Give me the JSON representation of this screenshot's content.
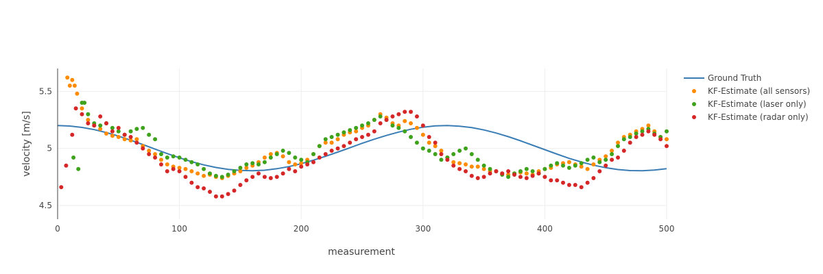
{
  "chart_data": {
    "type": "scatter",
    "title": "",
    "xlabel": "measurement",
    "ylabel": "velocity [m/s]",
    "xlim": [
      0,
      500
    ],
    "ylim": [
      4.38,
      5.7
    ],
    "x_ticks": [
      0,
      100,
      200,
      300,
      400,
      500
    ],
    "x_tick_labels": [
      "0",
      "100",
      "200",
      "300",
      "400",
      "500"
    ],
    "y_ticks": [
      4.5,
      5,
      5.5
    ],
    "y_tick_labels": [
      "4.5",
      "5",
      "5.5"
    ],
    "grid": true,
    "legend_position": "top-right",
    "series": [
      {
        "name": "Ground Truth",
        "mode": "line",
        "color": "#3a7db5",
        "x": [
          0,
          10,
          20,
          30,
          40,
          50,
          60,
          70,
          80,
          90,
          100,
          110,
          120,
          130,
          140,
          150,
          160,
          170,
          180,
          190,
          200,
          210,
          220,
          230,
          240,
          250,
          260,
          270,
          280,
          290,
          300,
          310,
          320,
          330,
          340,
          350,
          360,
          370,
          380,
          390,
          400,
          410,
          420,
          430,
          440,
          450,
          460,
          470,
          480,
          490,
          500
        ],
        "y": [
          5.2,
          5.196,
          5.184,
          5.165,
          5.139,
          5.108,
          5.072,
          5.034,
          4.994,
          4.955,
          4.918,
          4.884,
          4.856,
          4.833,
          4.817,
          4.807,
          4.804,
          4.809,
          4.822,
          4.841,
          4.866,
          4.897,
          4.931,
          4.968,
          5.006,
          5.045,
          5.081,
          5.114,
          5.143,
          5.168,
          5.186,
          5.197,
          5.2,
          5.195,
          5.182,
          5.162,
          5.135,
          5.103,
          5.067,
          5.028,
          4.989,
          4.95,
          4.913,
          4.881,
          4.853,
          4.831,
          4.815,
          4.806,
          4.805,
          4.81,
          4.823
        ]
      },
      {
        "name": "KF-Estimate (all sensors)",
        "mode": "markers",
        "color": "#ff8c00",
        "x": [
          8,
          10,
          12,
          14,
          16,
          20,
          25,
          30,
          35,
          40,
          45,
          50,
          55,
          60,
          65,
          70,
          75,
          80,
          85,
          90,
          95,
          100,
          105,
          110,
          115,
          120,
          125,
          130,
          135,
          140,
          145,
          150,
          155,
          160,
          165,
          170,
          175,
          180,
          185,
          190,
          195,
          200,
          205,
          210,
          215,
          220,
          225,
          230,
          235,
          240,
          245,
          250,
          255,
          260,
          265,
          270,
          275,
          280,
          285,
          290,
          295,
          300,
          305,
          310,
          315,
          320,
          325,
          330,
          335,
          340,
          345,
          350,
          355,
          360,
          365,
          370,
          375,
          380,
          385,
          390,
          395,
          400,
          405,
          410,
          415,
          420,
          425,
          430,
          435,
          440,
          445,
          450,
          455,
          460,
          465,
          470,
          475,
          480,
          485,
          490,
          495,
          500
        ],
        "y": [
          5.62,
          5.55,
          5.6,
          5.55,
          5.48,
          5.35,
          5.25,
          5.2,
          5.17,
          5.13,
          5.11,
          5.1,
          5.08,
          5.07,
          5.08,
          5.02,
          4.98,
          4.95,
          4.9,
          4.86,
          4.84,
          4.83,
          4.82,
          4.8,
          4.78,
          4.76,
          4.77,
          4.75,
          4.74,
          4.76,
          4.78,
          4.8,
          4.83,
          4.85,
          4.88,
          4.92,
          4.95,
          4.96,
          4.93,
          4.88,
          4.86,
          4.87,
          4.9,
          4.95,
          5.02,
          5.05,
          5.05,
          5.08,
          5.12,
          5.14,
          5.15,
          5.18,
          5.2,
          5.25,
          5.3,
          5.27,
          5.22,
          5.2,
          5.24,
          5.22,
          5.18,
          5.12,
          5.05,
          5.02,
          4.98,
          4.92,
          4.88,
          4.87,
          4.86,
          4.84,
          4.84,
          4.82,
          4.8,
          4.8,
          4.78,
          4.77,
          4.78,
          4.79,
          4.78,
          4.77,
          4.8,
          4.82,
          4.83,
          4.86,
          4.87,
          4.88,
          4.86,
          4.84,
          4.82,
          4.86,
          4.9,
          4.93,
          4.98,
          5.05,
          5.1,
          5.12,
          5.15,
          5.17,
          5.2,
          5.15,
          5.1,
          5.08
        ]
      },
      {
        "name": "KF-Estimate (laser only)",
        "mode": "markers",
        "color": "#3ea21c",
        "x": [
          13,
          17,
          20,
          22,
          25,
          30,
          35,
          40,
          45,
          50,
          55,
          60,
          65,
          70,
          75,
          80,
          85,
          90,
          95,
          100,
          105,
          110,
          115,
          120,
          125,
          130,
          135,
          140,
          145,
          150,
          155,
          160,
          165,
          170,
          175,
          180,
          185,
          190,
          195,
          200,
          205,
          210,
          215,
          220,
          225,
          230,
          235,
          240,
          245,
          250,
          255,
          260,
          265,
          270,
          275,
          280,
          285,
          290,
          295,
          300,
          305,
          310,
          315,
          320,
          325,
          330,
          335,
          340,
          345,
          350,
          355,
          360,
          365,
          370,
          375,
          380,
          385,
          390,
          395,
          400,
          405,
          410,
          415,
          420,
          425,
          430,
          435,
          440,
          445,
          450,
          455,
          460,
          465,
          470,
          475,
          480,
          485,
          490,
          495,
          500
        ],
        "y": [
          4.92,
          4.82,
          5.4,
          5.4,
          5.3,
          5.22,
          5.2,
          5.22,
          5.18,
          5.15,
          5.12,
          5.15,
          5.17,
          5.18,
          5.12,
          5.08,
          4.95,
          4.92,
          4.93,
          4.92,
          4.9,
          4.88,
          4.86,
          4.82,
          4.78,
          4.76,
          4.75,
          4.77,
          4.8,
          4.83,
          4.86,
          4.87,
          4.86,
          4.88,
          4.92,
          4.95,
          4.98,
          4.96,
          4.92,
          4.9,
          4.88,
          4.95,
          5.02,
          5.08,
          5.1,
          5.12,
          5.14,
          5.16,
          5.18,
          5.2,
          5.22,
          5.25,
          5.28,
          5.25,
          5.2,
          5.18,
          5.15,
          5.1,
          5.05,
          5.0,
          4.98,
          4.95,
          4.9,
          4.92,
          4.95,
          4.98,
          5.0,
          4.95,
          4.9,
          4.85,
          4.82,
          4.8,
          4.77,
          4.75,
          4.78,
          4.8,
          4.82,
          4.8,
          4.78,
          4.82,
          4.85,
          4.87,
          4.85,
          4.83,
          4.85,
          4.87,
          4.9,
          4.92,
          4.88,
          4.9,
          4.95,
          5.02,
          5.08,
          5.1,
          5.13,
          5.15,
          5.17,
          5.13,
          5.1,
          5.15
        ]
      },
      {
        "name": "KF-Estimate (radar only)",
        "mode": "markers",
        "color": "#d62728",
        "x": [
          3,
          7,
          12,
          15,
          20,
          25,
          30,
          35,
          40,
          45,
          50,
          55,
          60,
          65,
          70,
          75,
          80,
          85,
          90,
          95,
          100,
          105,
          110,
          115,
          120,
          125,
          130,
          135,
          140,
          145,
          150,
          155,
          160,
          165,
          170,
          175,
          180,
          185,
          190,
          195,
          200,
          205,
          210,
          215,
          220,
          225,
          230,
          235,
          240,
          245,
          250,
          255,
          260,
          265,
          270,
          275,
          280,
          285,
          290,
          295,
          300,
          305,
          310,
          315,
          320,
          325,
          330,
          335,
          340,
          345,
          350,
          355,
          360,
          365,
          370,
          375,
          380,
          385,
          390,
          395,
          400,
          405,
          410,
          415,
          420,
          425,
          430,
          435,
          440,
          445,
          450,
          455,
          460,
          465,
          470,
          475,
          480,
          485,
          490,
          495,
          500
        ],
        "y": [
          4.66,
          4.85,
          5.12,
          5.35,
          5.3,
          5.22,
          5.2,
          5.28,
          5.22,
          5.15,
          5.18,
          5.12,
          5.1,
          5.05,
          5.0,
          4.95,
          4.92,
          4.86,
          4.8,
          4.82,
          4.8,
          4.75,
          4.7,
          4.66,
          4.65,
          4.62,
          4.58,
          4.58,
          4.6,
          4.63,
          4.68,
          4.72,
          4.75,
          4.78,
          4.75,
          4.74,
          4.75,
          4.78,
          4.82,
          4.8,
          4.84,
          4.86,
          4.88,
          4.92,
          4.95,
          4.98,
          5.0,
          5.02,
          5.05,
          5.08,
          5.1,
          5.12,
          5.15,
          5.22,
          5.25,
          5.28,
          5.3,
          5.32,
          5.32,
          5.28,
          5.2,
          5.1,
          5.05,
          4.95,
          4.9,
          4.85,
          4.82,
          4.8,
          4.76,
          4.74,
          4.75,
          4.78,
          4.8,
          4.78,
          4.8,
          4.77,
          4.75,
          4.74,
          4.76,
          4.78,
          4.75,
          4.72,
          4.72,
          4.7,
          4.68,
          4.68,
          4.66,
          4.7,
          4.74,
          4.8,
          4.85,
          4.9,
          4.92,
          4.98,
          5.05,
          5.1,
          5.12,
          5.15,
          5.12,
          5.08,
          5.02
        ]
      }
    ]
  }
}
